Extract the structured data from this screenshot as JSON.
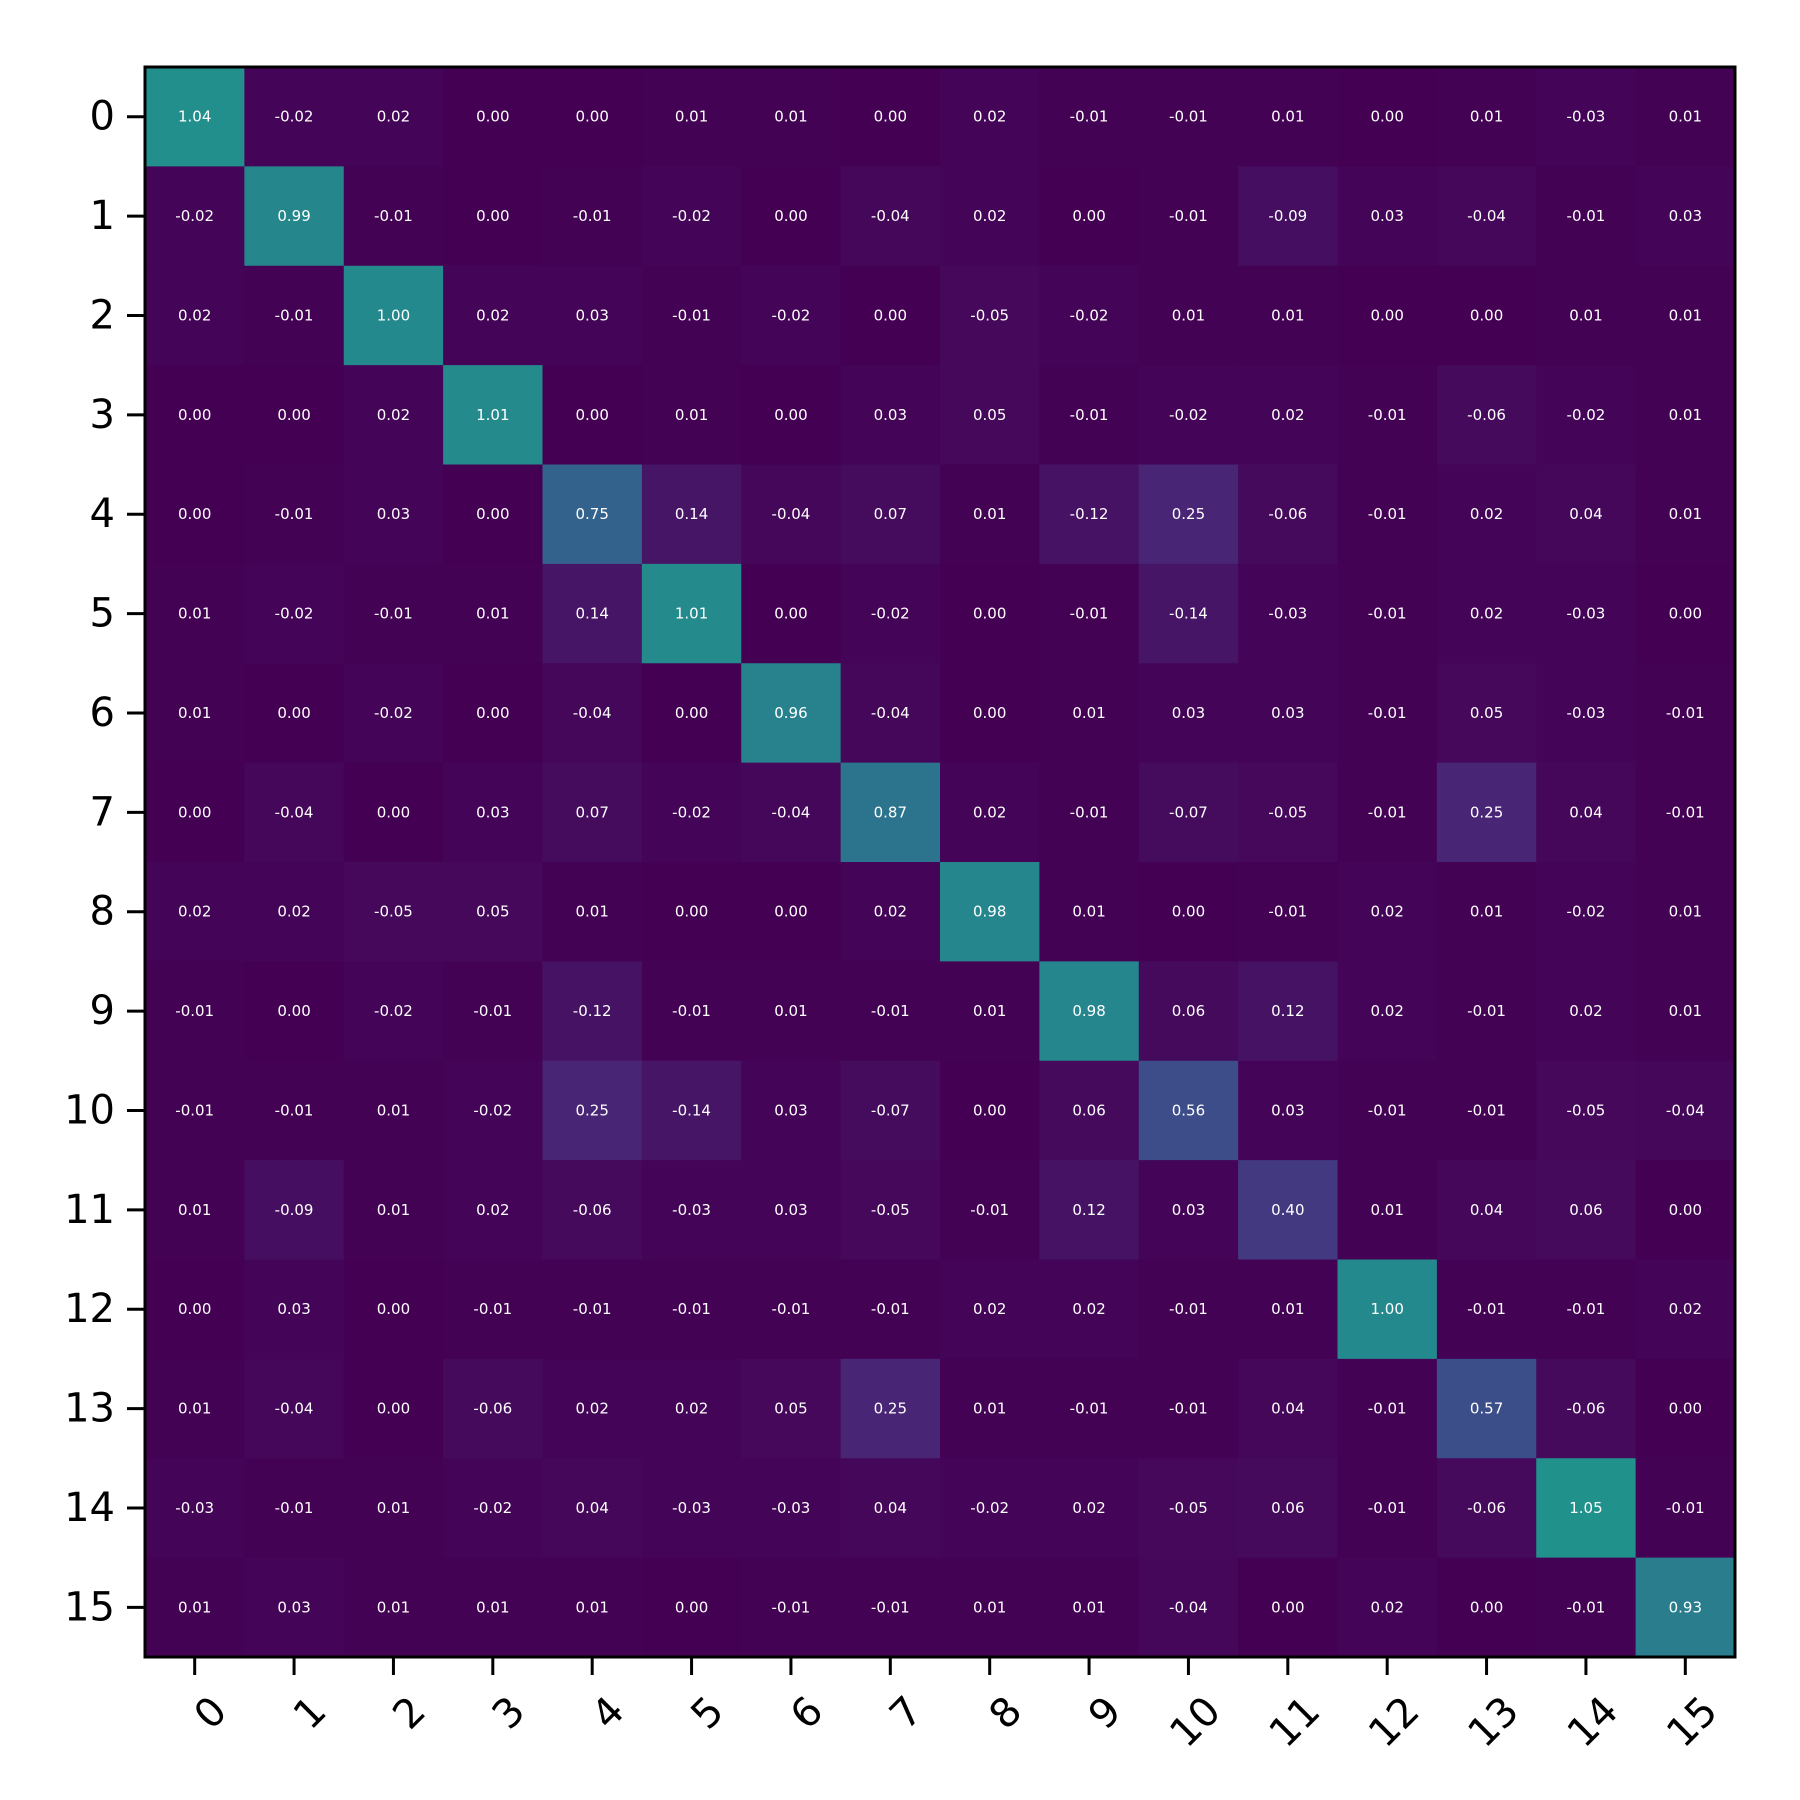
{
  "chart_data": {
    "type": "heatmap",
    "title": "",
    "xlabel": "",
    "ylabel": "",
    "x_categories": [
      "0",
      "1",
      "2",
      "3",
      "4",
      "5",
      "6",
      "7",
      "8",
      "9",
      "10",
      "11",
      "12",
      "13",
      "14",
      "15"
    ],
    "y_categories": [
      "0",
      "1",
      "2",
      "3",
      "4",
      "5",
      "6",
      "7",
      "8",
      "9",
      "10",
      "11",
      "12",
      "13",
      "14",
      "15"
    ],
    "values": [
      [
        1.04,
        -0.02,
        0.02,
        0.0,
        0.0,
        0.01,
        0.01,
        -0.0,
        0.02,
        -0.01,
        -0.01,
        0.01,
        -0.0,
        0.01,
        -0.03,
        0.01
      ],
      [
        -0.02,
        0.99,
        -0.01,
        -0.0,
        -0.01,
        -0.02,
        -0.0,
        -0.04,
        0.02,
        0.0,
        -0.01,
        -0.09,
        0.03,
        -0.04,
        -0.01,
        0.03
      ],
      [
        0.02,
        -0.01,
        1.0,
        0.02,
        0.03,
        -0.01,
        -0.02,
        0.0,
        -0.05,
        -0.02,
        0.01,
        0.01,
        -0.0,
        0.0,
        0.01,
        0.01
      ],
      [
        0.0,
        -0.0,
        0.02,
        1.01,
        -0.0,
        0.01,
        0.0,
        0.03,
        0.05,
        -0.01,
        -0.02,
        0.02,
        -0.01,
        -0.06,
        -0.02,
        0.01
      ],
      [
        0.0,
        -0.01,
        0.03,
        -0.0,
        0.75,
        0.14,
        -0.04,
        0.07,
        0.01,
        -0.12,
        0.25,
        -0.06,
        -0.01,
        0.02,
        0.04,
        0.01
      ],
      [
        0.01,
        -0.02,
        -0.01,
        0.01,
        0.14,
        1.01,
        -0.0,
        -0.02,
        0.0,
        -0.01,
        -0.14,
        -0.03,
        -0.01,
        0.02,
        -0.03,
        0.0
      ],
      [
        0.01,
        -0.0,
        -0.02,
        0.0,
        -0.04,
        -0.0,
        0.96,
        -0.04,
        -0.0,
        0.01,
        0.03,
        0.03,
        -0.01,
        0.05,
        -0.03,
        -0.01
      ],
      [
        -0.0,
        -0.04,
        0.0,
        0.03,
        0.07,
        -0.02,
        -0.04,
        0.87,
        0.02,
        -0.01,
        -0.07,
        -0.05,
        -0.01,
        0.25,
        0.04,
        -0.01
      ],
      [
        0.02,
        0.02,
        -0.05,
        0.05,
        0.01,
        0.0,
        -0.0,
        0.02,
        0.98,
        0.01,
        -0.0,
        -0.01,
        0.02,
        0.01,
        -0.02,
        0.01
      ],
      [
        -0.01,
        0.0,
        -0.02,
        -0.01,
        -0.12,
        -0.01,
        0.01,
        -0.01,
        0.01,
        0.98,
        0.06,
        0.12,
        0.02,
        -0.01,
        0.02,
        0.01
      ],
      [
        -0.01,
        -0.01,
        0.01,
        -0.02,
        0.25,
        -0.14,
        0.03,
        -0.07,
        -0.0,
        0.06,
        0.56,
        0.03,
        -0.01,
        -0.01,
        -0.05,
        -0.04
      ],
      [
        0.01,
        -0.09,
        0.01,
        0.02,
        -0.06,
        -0.03,
        0.03,
        -0.05,
        -0.01,
        0.12,
        0.03,
        0.4,
        0.01,
        0.04,
        0.06,
        0.0
      ],
      [
        -0.0,
        0.03,
        -0.0,
        -0.01,
        -0.01,
        -0.01,
        -0.01,
        -0.01,
        0.02,
        0.02,
        -0.01,
        0.01,
        1.0,
        -0.01,
        -0.01,
        0.02
      ],
      [
        0.01,
        -0.04,
        0.0,
        -0.06,
        0.02,
        0.02,
        0.05,
        0.25,
        0.01,
        -0.01,
        -0.01,
        0.04,
        -0.01,
        0.57,
        -0.06,
        0.0
      ],
      [
        -0.03,
        -0.01,
        0.01,
        -0.02,
        0.04,
        -0.03,
        -0.03,
        0.04,
        -0.02,
        0.02,
        -0.05,
        0.06,
        -0.01,
        -0.06,
        1.05,
        -0.01
      ],
      [
        0.01,
        0.03,
        0.01,
        0.01,
        0.01,
        0.0,
        -0.01,
        -0.01,
        0.01,
        0.01,
        -0.04,
        0.0,
        0.02,
        0.0,
        -0.01,
        0.93
      ]
    ],
    "value_format": "2 decimals",
    "colormap": "viridis (magnitude)",
    "color_range": [
      0,
      2.1
    ],
    "grid": false,
    "legend": "none",
    "colors": {
      "low": "#440154",
      "mid": "#3b528b",
      "high": "#21918c",
      "annotation_text": "#ffffff",
      "frame": "#000000"
    }
  }
}
